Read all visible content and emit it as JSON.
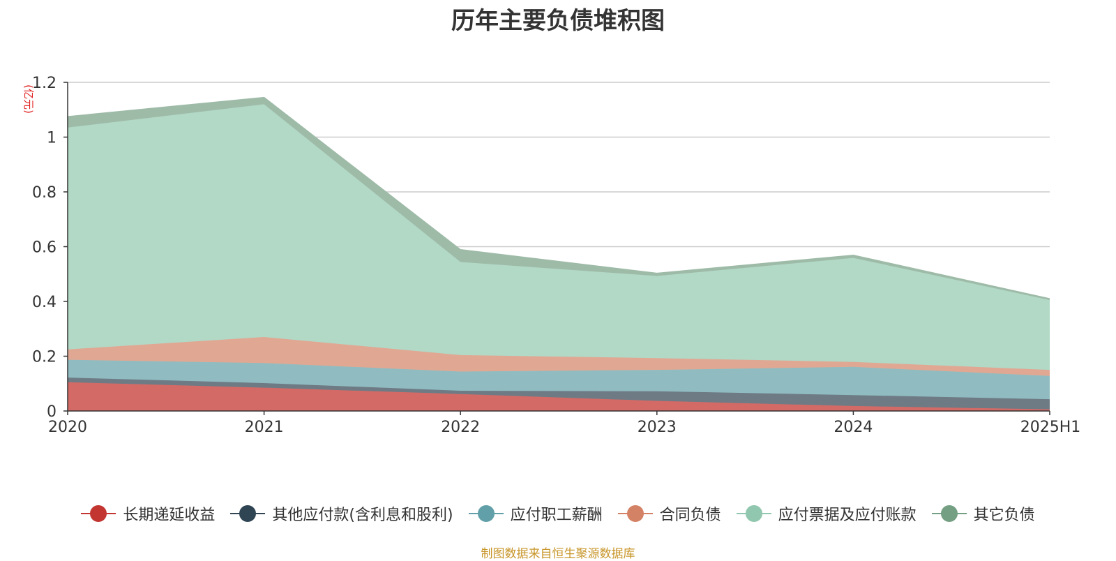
{
  "title": "历年主要负债堆积图",
  "source_note": "制图数据来自恒生聚源数据库",
  "chart_data": {
    "type": "area",
    "stacked": true,
    "x": [
      "2020",
      "2021",
      "2022",
      "2023",
      "2024",
      "2025H1"
    ],
    "ylabel": "(亿元)",
    "ylim": [
      0,
      1.2
    ],
    "yticks": [
      0,
      0.2,
      0.4,
      0.6,
      0.8,
      1,
      1.2
    ],
    "ytick_labels": [
      "0",
      "0.2",
      "0.4",
      "0.6",
      "0.8",
      "1",
      "1.2"
    ],
    "grid": true,
    "legend_position": "bottom",
    "series": [
      {
        "name": "长期递延收益",
        "color": "#c23531",
        "fill_color": "#d46a66",
        "values": [
          0.105,
          0.085,
          0.062,
          0.037,
          0.018,
          0.006
        ]
      },
      {
        "name": "其他应付款(含利息和股利)",
        "color": "#2f4554",
        "fill_color": "#6e7b85",
        "values": [
          0.017,
          0.017,
          0.012,
          0.035,
          0.04,
          0.037
        ]
      },
      {
        "name": "应付职工薪酬",
        "color": "#61a0a8",
        "fill_color": "#90bcc1",
        "values": [
          0.065,
          0.073,
          0.07,
          0.078,
          0.103,
          0.085
        ]
      },
      {
        "name": "合同负债",
        "color": "#d48265",
        "fill_color": "#e0a893",
        "values": [
          0.038,
          0.095,
          0.06,
          0.043,
          0.018,
          0.022
        ]
      },
      {
        "name": "应付票据及应付账款",
        "color": "#91c7ae",
        "fill_color": "#b2d8c6",
        "values": [
          0.81,
          0.85,
          0.34,
          0.3,
          0.38,
          0.255
        ]
      },
      {
        "name": "其它负债",
        "color": "#749f83",
        "fill_color": "#9ebba8",
        "values": [
          0.04,
          0.025,
          0.045,
          0.01,
          0.01,
          0.005
        ]
      }
    ]
  }
}
